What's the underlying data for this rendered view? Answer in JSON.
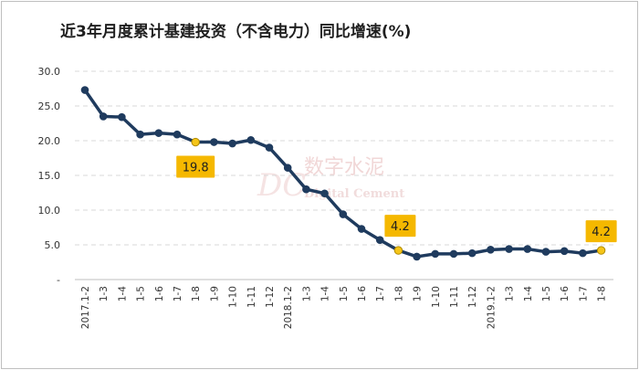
{
  "title": "近3年月度累计基建投资（不含电力）同比增速(%)",
  "watermark": {
    "logo": "DC",
    "cn": "数字水泥",
    "en": "Digital Cement"
  },
  "colors": {
    "line": "#1f3b5e",
    "highlight": "#f5c518",
    "callout_bg": "#f5b800",
    "grid": "#d9d9d9"
  },
  "chart_data": {
    "type": "line",
    "title": "近3年月度累计基建投资（不含电力）同比增速(%)",
    "xlabel": "",
    "ylabel": "",
    "ylim": [
      0,
      30
    ],
    "y_ticks": [
      "-",
      "5.0",
      "10.0",
      "15.0",
      "20.0",
      "25.0",
      "30.0"
    ],
    "grid": true,
    "legend": "none",
    "categories": [
      "2017.1-2",
      "1-3",
      "1-4",
      "1-5",
      "1-6",
      "1-7",
      "1-8",
      "1-9",
      "1-10",
      "1-11",
      "1-12",
      "2018.1-2",
      "1-3",
      "1-4",
      "1-5",
      "1-6",
      "1-7",
      "1-8",
      "1-9",
      "1-10",
      "1-11",
      "1-12",
      "2019.1-2",
      "1-3",
      "1-4",
      "1-5",
      "1-6",
      "1-7",
      "1-8"
    ],
    "values": [
      27.3,
      23.5,
      23.4,
      20.9,
      21.1,
      20.9,
      19.8,
      19.8,
      19.6,
      20.1,
      19.0,
      16.1,
      13.0,
      12.4,
      9.4,
      7.3,
      5.7,
      4.2,
      3.3,
      3.7,
      3.7,
      3.8,
      4.3,
      4.4,
      4.4,
      4.0,
      4.1,
      3.8,
      4.2
    ],
    "highlights": [
      {
        "index": 6,
        "label": "19.8"
      },
      {
        "index": 17,
        "label": "4.2"
      },
      {
        "index": 28,
        "label": "4.2"
      }
    ]
  }
}
